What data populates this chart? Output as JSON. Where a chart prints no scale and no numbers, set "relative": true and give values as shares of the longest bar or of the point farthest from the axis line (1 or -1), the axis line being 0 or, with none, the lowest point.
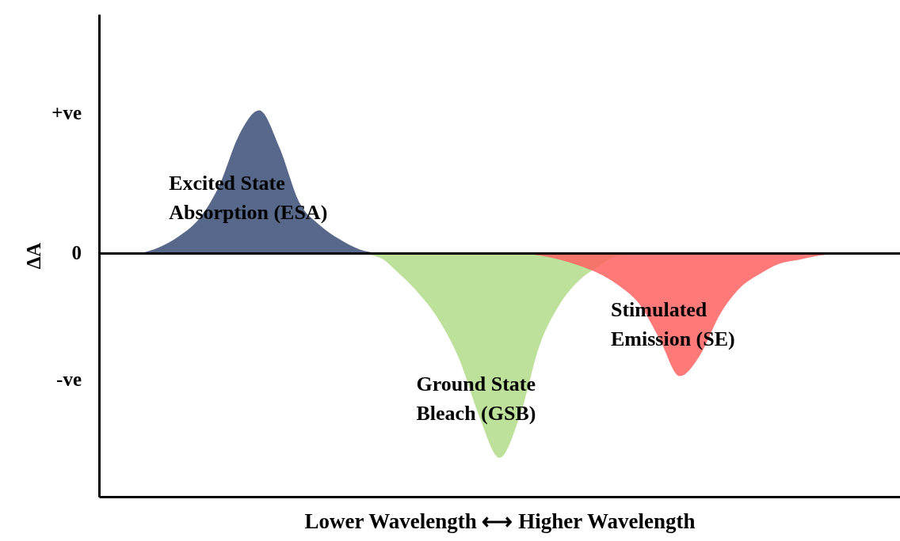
{
  "chart_data": {
    "type": "area",
    "relative": true,
    "ylabel": "ΔA",
    "xlabel": "Lower Wavelength  ⟷  Higher Wavelength",
    "categories": [
      null,
      null,
      null,
      null,
      null,
      null,
      null,
      null,
      null,
      null,
      null,
      null,
      null,
      null,
      null,
      null,
      null,
      null,
      null,
      null,
      null,
      null,
      null,
      null,
      null,
      null,
      null,
      null,
      null,
      null,
      null,
      null,
      null,
      null,
      null,
      null,
      null,
      null,
      null,
      null,
      null
    ],
    "annotations": [
      "+ve",
      "0",
      "-ve"
    ],
    "series": [
      {
        "name": "Excited State Absorption (ESA)",
        "color": "#57688a",
        "values": [
          null,
          null,
          0,
          0.03,
          0.085,
          0.17,
          0.33,
          0.58,
          0.7,
          0.52,
          0.25,
          0.14,
          0.07,
          0.02,
          0,
          null,
          null,
          null,
          null,
          null,
          null,
          null,
          null,
          null,
          null,
          null,
          null,
          null,
          null,
          null,
          null,
          null,
          null,
          null,
          null,
          null,
          null,
          null,
          null,
          null,
          null
        ]
      },
      {
        "name": "Ground State Bleach (GSB)",
        "color": "#bde19a",
        "values": [
          null,
          null,
          null,
          null,
          null,
          null,
          null,
          null,
          null,
          null,
          null,
          null,
          null,
          0,
          -0.02,
          -0.1,
          -0.2,
          -0.33,
          -0.52,
          -0.8,
          -1,
          -0.8,
          -0.45,
          -0.25,
          -0.13,
          -0.06,
          -0.01,
          0,
          null,
          null,
          null,
          null,
          null,
          null,
          null,
          null,
          null,
          null,
          null,
          null,
          null
        ]
      },
      {
        "name": "Stimulated Emission (SE)",
        "color": "#ff6161",
        "values": [
          null,
          null,
          null,
          null,
          null,
          null,
          null,
          null,
          null,
          null,
          null,
          null,
          null,
          null,
          null,
          null,
          null,
          null,
          null,
          null,
          null,
          0,
          -0.01,
          -0.03,
          -0.06,
          -0.1,
          -0.16,
          -0.25,
          -0.42,
          -0.6,
          -0.5,
          -0.3,
          -0.17,
          -0.1,
          -0.05,
          -0.03,
          -0.01,
          0,
          null,
          null,
          null
        ]
      }
    ]
  }
}
